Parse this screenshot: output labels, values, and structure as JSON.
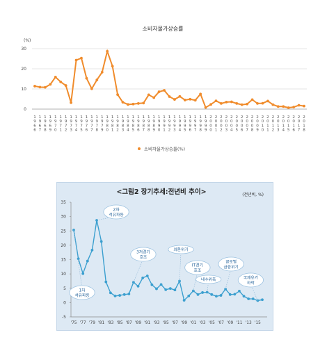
{
  "chart_data": [
    {
      "type": "line",
      "title": "소비자물가상승률",
      "ylabel": "(%)",
      "ylim": [
        0,
        30
      ],
      "yticks": [
        0,
        10,
        20,
        30
      ],
      "x": [
        "1966",
        "1967",
        "1968",
        "1969",
        "1970",
        "1971",
        "1972",
        "1973",
        "1974",
        "1975",
        "1976",
        "1977",
        "1978",
        "1979",
        "1980",
        "1981",
        "1982",
        "1983",
        "1984",
        "1985",
        "1986",
        "1987",
        "1988",
        "1989",
        "1990",
        "1991",
        "1992",
        "1993",
        "1994",
        "1995",
        "1996",
        "1997",
        "1998",
        "1999",
        "2000",
        "2001",
        "2002",
        "2003",
        "2004",
        "2005",
        "2006",
        "2007",
        "2008",
        "2009",
        "2010",
        "2011",
        "2012",
        "2013",
        "2014",
        "2015",
        "2016",
        "2017",
        "2018"
      ],
      "series": [
        {
          "name": "소비자물가상승률(%)",
          "color": "#f08c2c",
          "values": [
            11.4,
            10.9,
            10.8,
            12.3,
            15.9,
            13.5,
            11.7,
            3.2,
            24.3,
            25.3,
            15.3,
            10.1,
            14.5,
            18.3,
            28.7,
            21.3,
            7.2,
            3.4,
            2.3,
            2.5,
            2.8,
            3.0,
            7.1,
            5.7,
            8.6,
            9.3,
            6.2,
            4.8,
            6.3,
            4.5,
            4.9,
            4.4,
            7.5,
            0.8,
            2.3,
            4.1,
            2.8,
            3.5,
            3.6,
            2.8,
            2.2,
            2.5,
            4.7,
            2.8,
            2.9,
            4.0,
            2.2,
            1.3,
            1.3,
            0.7,
            1.0,
            1.9,
            1.5
          ]
        }
      ],
      "legend": "bottom",
      "grid": true
    },
    {
      "type": "line",
      "title": "<그림2 장기추세:전년비 추이>",
      "unit_label": "(전년비, %)",
      "ylim": [
        -5,
        35
      ],
      "yticks": [
        -5,
        0,
        5,
        10,
        15,
        20,
        25,
        30,
        35
      ],
      "x": [
        "1975",
        "1976",
        "1977",
        "1978",
        "1979",
        "1980",
        "1981",
        "1982",
        "1983",
        "1984",
        "1985",
        "1986",
        "1987",
        "1988",
        "1989",
        "1990",
        "1991",
        "1992",
        "1993",
        "1994",
        "1995",
        "1996",
        "1997",
        "1998",
        "1999",
        "2000",
        "2001",
        "2002",
        "2003",
        "2004",
        "2005",
        "2006",
        "2007",
        "2008",
        "2009",
        "2010",
        "2011",
        "2012",
        "2013",
        "2014",
        "2015",
        "2016"
      ],
      "xticks": [
        "'75",
        "'77",
        "'79",
        "'81",
        "'83",
        "'85",
        "'87",
        "'89",
        "'91",
        "'93",
        "'95",
        "'97",
        "'99",
        "'01",
        "'03",
        "'05",
        "'07",
        "'09",
        "'11",
        "'13",
        "'15"
      ],
      "series": [
        {
          "color": "#3b9fcf",
          "values": [
            25.3,
            15.3,
            10.1,
            14.5,
            18.3,
            28.7,
            21.3,
            7.2,
            3.4,
            2.3,
            2.5,
            2.8,
            3.0,
            7.1,
            5.7,
            8.6,
            9.3,
            6.2,
            4.8,
            6.3,
            4.5,
            4.9,
            4.4,
            7.5,
            0.8,
            2.3,
            4.1,
            2.8,
            3.5,
            3.6,
            2.8,
            2.2,
            2.5,
            4.7,
            2.8,
            2.9,
            4.0,
            2.2,
            1.3,
            1.3,
            0.7,
            1.0
          ]
        }
      ],
      "annotations": [
        {
          "line1": "1차",
          "line2": "석유파동",
          "year": "1975"
        },
        {
          "line1": "2차",
          "line2": "석유파동",
          "year": "1980"
        },
        {
          "line1": "3저경기",
          "line2": "호조",
          "year": "1988"
        },
        {
          "line1": "외환위기",
          "line2": "",
          "year": "1998"
        },
        {
          "line1": "IT경기",
          "line2": "호조",
          "year": "2001"
        },
        {
          "line1": "내수위축",
          "line2": "",
          "year": "2004"
        },
        {
          "line1": "글로벌",
          "line2": "금융위기",
          "year": "2008"
        },
        {
          "line1": "국제유가",
          "line2": "하락",
          "year": "2015"
        }
      ],
      "grid": false
    }
  ]
}
